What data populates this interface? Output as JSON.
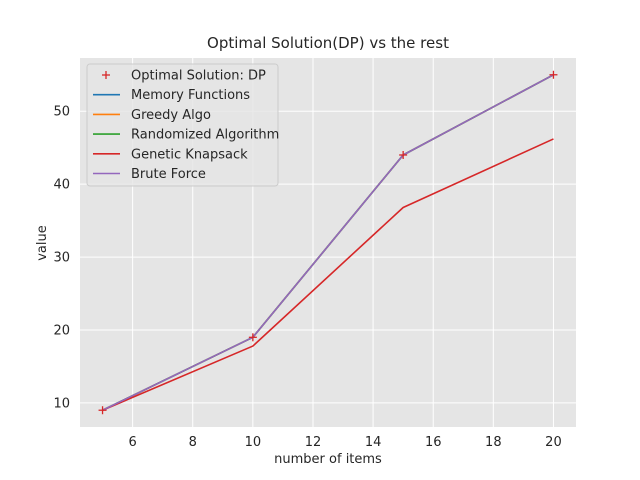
{
  "chart_data": {
    "type": "line",
    "title": "Optimal Solution(DP) vs the rest",
    "xlabel": "number of items",
    "ylabel": "value",
    "x": [
      5,
      10,
      15,
      20
    ],
    "xlim": [
      4.25,
      20.75
    ],
    "ylim": [
      6.7,
      57.3
    ],
    "xticks": [
      6,
      8,
      10,
      12,
      14,
      16,
      18,
      20
    ],
    "yticks": [
      10,
      20,
      30,
      40,
      50
    ],
    "grid": true,
    "legend_position": "top-left",
    "series": [
      {
        "name": "Optimal Solution: DP",
        "values": [
          9,
          19,
          44,
          55
        ],
        "color": "#d62728",
        "style": "marker-plus"
      },
      {
        "name": "Memory Functions",
        "values": [
          9,
          19,
          44,
          55
        ],
        "color": "#1f77b4",
        "style": "line"
      },
      {
        "name": "Greedy Algo",
        "values": [
          9,
          19,
          44,
          55
        ],
        "color": "#ff7f0e",
        "style": "line"
      },
      {
        "name": "Randomized Algorithm",
        "values": [
          9,
          19,
          44,
          55
        ],
        "color": "#2ca02c",
        "style": "line"
      },
      {
        "name": "Genetic Knapsack",
        "values": [
          9,
          17.8,
          36.8,
          46.2
        ],
        "color": "#d62728",
        "style": "line"
      },
      {
        "name": "Brute Force",
        "values": [
          9,
          19,
          44,
          55
        ],
        "color": "#9467bd",
        "style": "line"
      }
    ]
  }
}
